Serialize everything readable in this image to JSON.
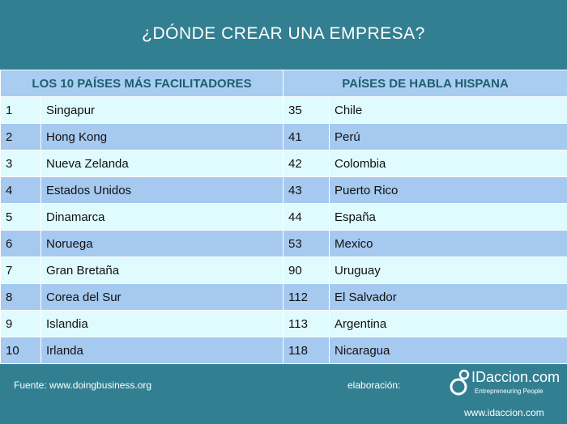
{
  "title": "¿DÓNDE CREAR UNA EMPRESA?",
  "table": {
    "header_left": "LOS 10 PAÍSES MÁS FACILITADORES",
    "header_right": "PAÍSES DE HABLA HISPANA",
    "rows": [
      {
        "rank_a": "1",
        "country_a": "Singapur",
        "rank_b": "35",
        "country_b": "Chile"
      },
      {
        "rank_a": "2",
        "country_a": "Hong Kong",
        "rank_b": "41",
        "country_b": "Perú"
      },
      {
        "rank_a": "3",
        "country_a": "Nueva Zelanda",
        "rank_b": "42",
        "country_b": "Colombia"
      },
      {
        "rank_a": "4",
        "country_a": "Estados Unidos",
        "rank_b": "43",
        "country_b": "Puerto Rico"
      },
      {
        "rank_a": "5",
        "country_a": "Dinamarca",
        "rank_b": "44",
        "country_b": "España"
      },
      {
        "rank_a": "6",
        "country_a": "Noruega",
        "rank_b": "53",
        "country_b": "Mexico"
      },
      {
        "rank_a": "7",
        "country_a": "Gran Bretaña",
        "rank_b": "90",
        "country_b": "Uruguay"
      },
      {
        "rank_a": "8",
        "country_a": "Corea del Sur",
        "rank_b": "112",
        "country_b": "El Salvador"
      },
      {
        "rank_a": "9",
        "country_a": "Islandia",
        "rank_b": "113",
        "country_b": "Argentina"
      },
      {
        "rank_a": "10",
        "country_a": "Irlanda",
        "rank_b": "118",
        "country_b": "Nicaragua"
      }
    ]
  },
  "footer": {
    "source": "Fuente: www.doingbusiness.org",
    "elaboration": "elaboración:",
    "logo_text": "IDaccion.com",
    "logo_tagline": "Entrepreneuring People",
    "logo_icon": "logo-mark-icon",
    "url": "www.idaccion.com"
  },
  "colors": {
    "background": "#327f92",
    "header": "#a9ccf1",
    "row_light": "#dffbfd",
    "row_dark": "#a6c9ef"
  }
}
